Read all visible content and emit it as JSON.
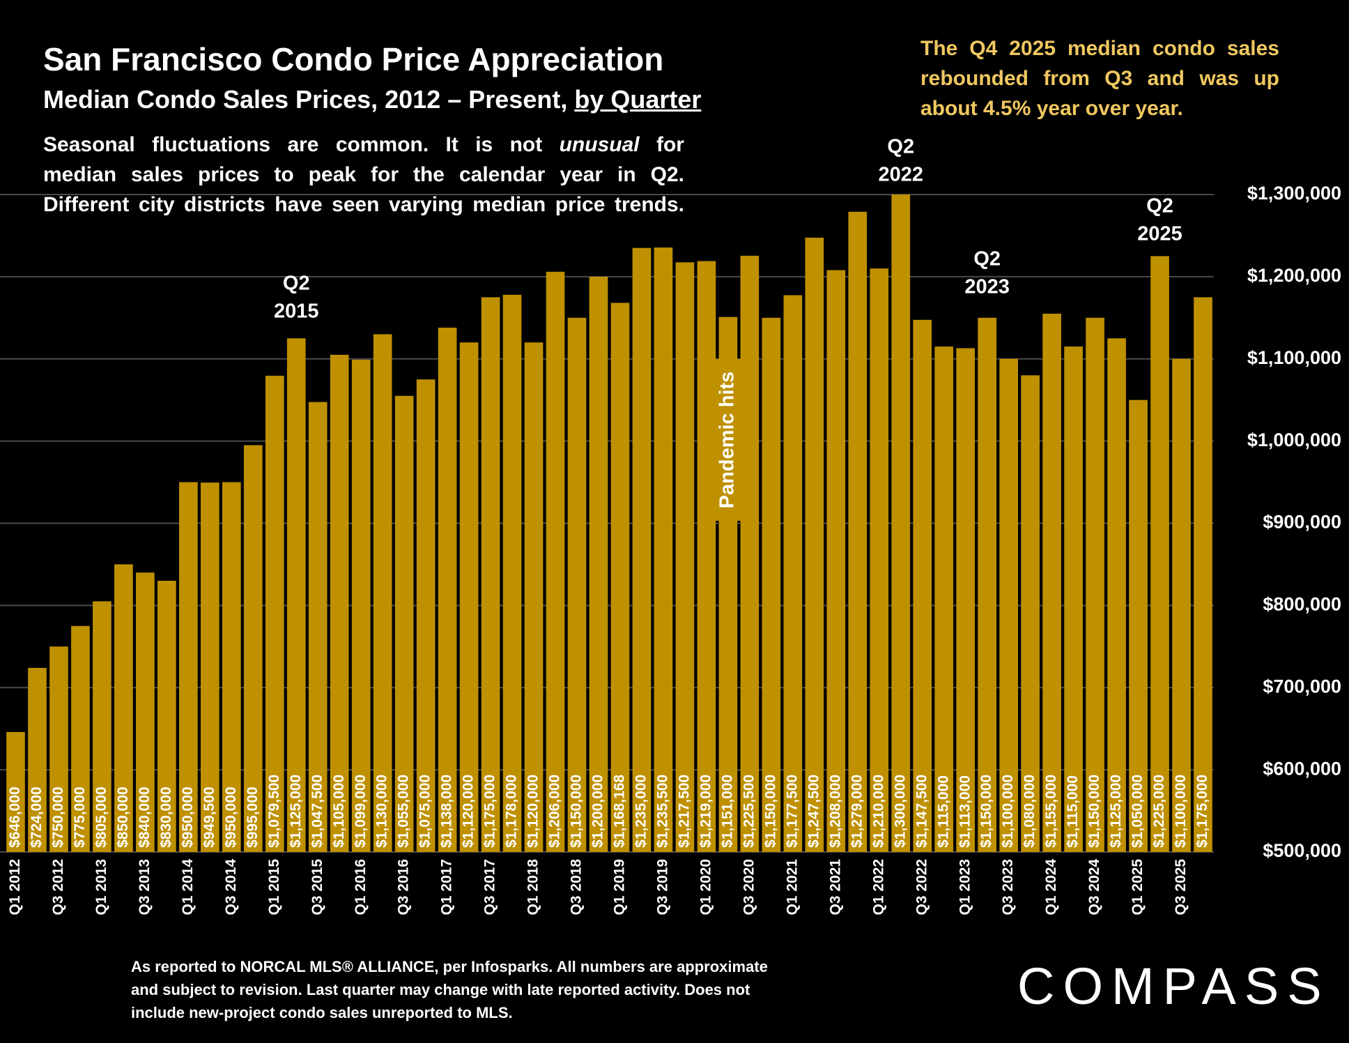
{
  "chart_data": {
    "type": "bar",
    "title": "San Francisco Condo Price Appreciation",
    "subtitle": [
      "Median Condo Sales Prices, 2012 – Present,",
      "by Quarter"
    ],
    "description": [
      "Seasonal fluctuations are common. It is not",
      "unusual",
      "for",
      "median sales prices to peak for the calendar year in Q2.",
      "Different city districts have seen varying median price trends."
    ],
    "callout": [
      "The Q4 2025 median condo sales",
      "rebounded from Q3 and was up",
      "about 4.5% year over year."
    ],
    "annotations": [
      [
        "Q2",
        "2015"
      ],
      [
        "Q2",
        "2022"
      ],
      [
        "Q2",
        "2023"
      ],
      [
        "Q2",
        "2025"
      ],
      "Pandemic hits"
    ],
    "footnote": [
      "As reported to NORCAL MLS® ALLIANCE, per Infosparks. All numbers are approximate",
      "and subject to revision. Last quarter may change with late reported activity. Does not",
      "include new-project condo sales unreported to MLS."
    ],
    "logo": "COMPASS",
    "categories": [
      "Q1 2012",
      null,
      "Q3 2012",
      null,
      "Q1 2013",
      null,
      "Q3 2013",
      null,
      "Q1 2014",
      null,
      "Q3 2014",
      null,
      "Q1 2015",
      null,
      "Q3 2015",
      null,
      "Q1 2016",
      null,
      "Q3 2016",
      null,
      "Q1 2017",
      null,
      "Q3 2017",
      null,
      "Q1 2018",
      null,
      "Q3 2018",
      null,
      "Q1 2019",
      null,
      "Q3 2019",
      null,
      "Q1 2020",
      null,
      "Q3 2020",
      null,
      "Q1 2021",
      null,
      "Q3 2021",
      null,
      "Q1 2022",
      null,
      "Q3 2022",
      null,
      "Q1 2023",
      null,
      "Q3 2023",
      null,
      "Q1 2024",
      null,
      "Q3 2024",
      null,
      "Q1 2025",
      null,
      "Q3 2025",
      null
    ],
    "values": [
      646000,
      724000,
      750000,
      775000,
      805000,
      850000,
      840000,
      830000,
      950000,
      949500,
      950000,
      995000,
      1079500,
      1125000,
      1047500,
      1105000,
      1099000,
      1130000,
      1055000,
      1075000,
      1138000,
      1120000,
      1175000,
      1178000,
      1120000,
      1206000,
      1150000,
      1200000,
      1168168,
      1235000,
      1235500,
      1217500,
      1219000,
      1151000,
      1225500,
      1150000,
      1177500,
      1247500,
      1208000,
      1279000,
      1210000,
      1300000,
      1147500,
      1115000,
      1113000,
      1150000,
      1100000,
      1080000,
      1155000,
      1115000,
      1150000,
      1125000,
      1050000,
      1225000,
      1100000,
      1175000
    ],
    "value_labels": [
      "$646,000",
      "$724,000",
      "$750,000",
      "$775,000",
      "$805,000",
      "$850,000",
      "$840,000",
      "$830,000",
      "$950,000",
      "$949,500",
      "$950,000",
      "$995,000",
      "$1,079,500",
      "$1,125,000",
      "$1,047,500",
      "$1,105,000",
      "$1,099,000",
      "$1,130,000",
      "$1,055,000",
      "$1,075,000",
      "$1,138,000",
      "$1,120,000",
      "$1,175,000",
      "$1,178,000",
      "$1,120,000",
      "$1,206,000",
      "$1,150,000",
      "$1,200,000",
      "$1,168,168",
      "$1,235,000",
      "$1,235,500",
      "$1,217,500",
      "$1,219,000",
      "$1,151,000",
      "$1,225,500",
      "$1,150,000",
      "$1,177,500",
      "$1,247,500",
      "$1,208,000",
      "$1,279,000",
      "$1,210,000",
      "$1,300,000",
      "$1,147,500",
      "$1,115,000",
      "$1,113,000",
      "$1,150,000",
      "$1,100,000",
      "$1,080,000",
      "$1,155,000",
      "$1,115,000",
      "$1,150,000",
      "$1,125,000",
      "$1,050,000",
      "$1,225,000",
      "$1,100,000",
      "$1,175,000"
    ],
    "color": "#bf9000",
    "ylim": [
      500000,
      1300000
    ],
    "yticks": [
      {
        "value": 500000,
        "label": "$500,000"
      },
      {
        "value": 600000,
        "label": "$600,000"
      },
      {
        "value": 700000,
        "label": "$700,000"
      },
      {
        "value": 800000,
        "label": "$800,000"
      },
      {
        "value": 900000,
        "label": "$900,000"
      },
      {
        "value": 1000000,
        "label": "$1,000,000"
      },
      {
        "value": 1100000,
        "label": "$1,100,000"
      },
      {
        "value": 1200000,
        "label": "$1,200,000"
      },
      {
        "value": 1300000,
        "label": "$1,300,000"
      }
    ],
    "grid": true
  }
}
